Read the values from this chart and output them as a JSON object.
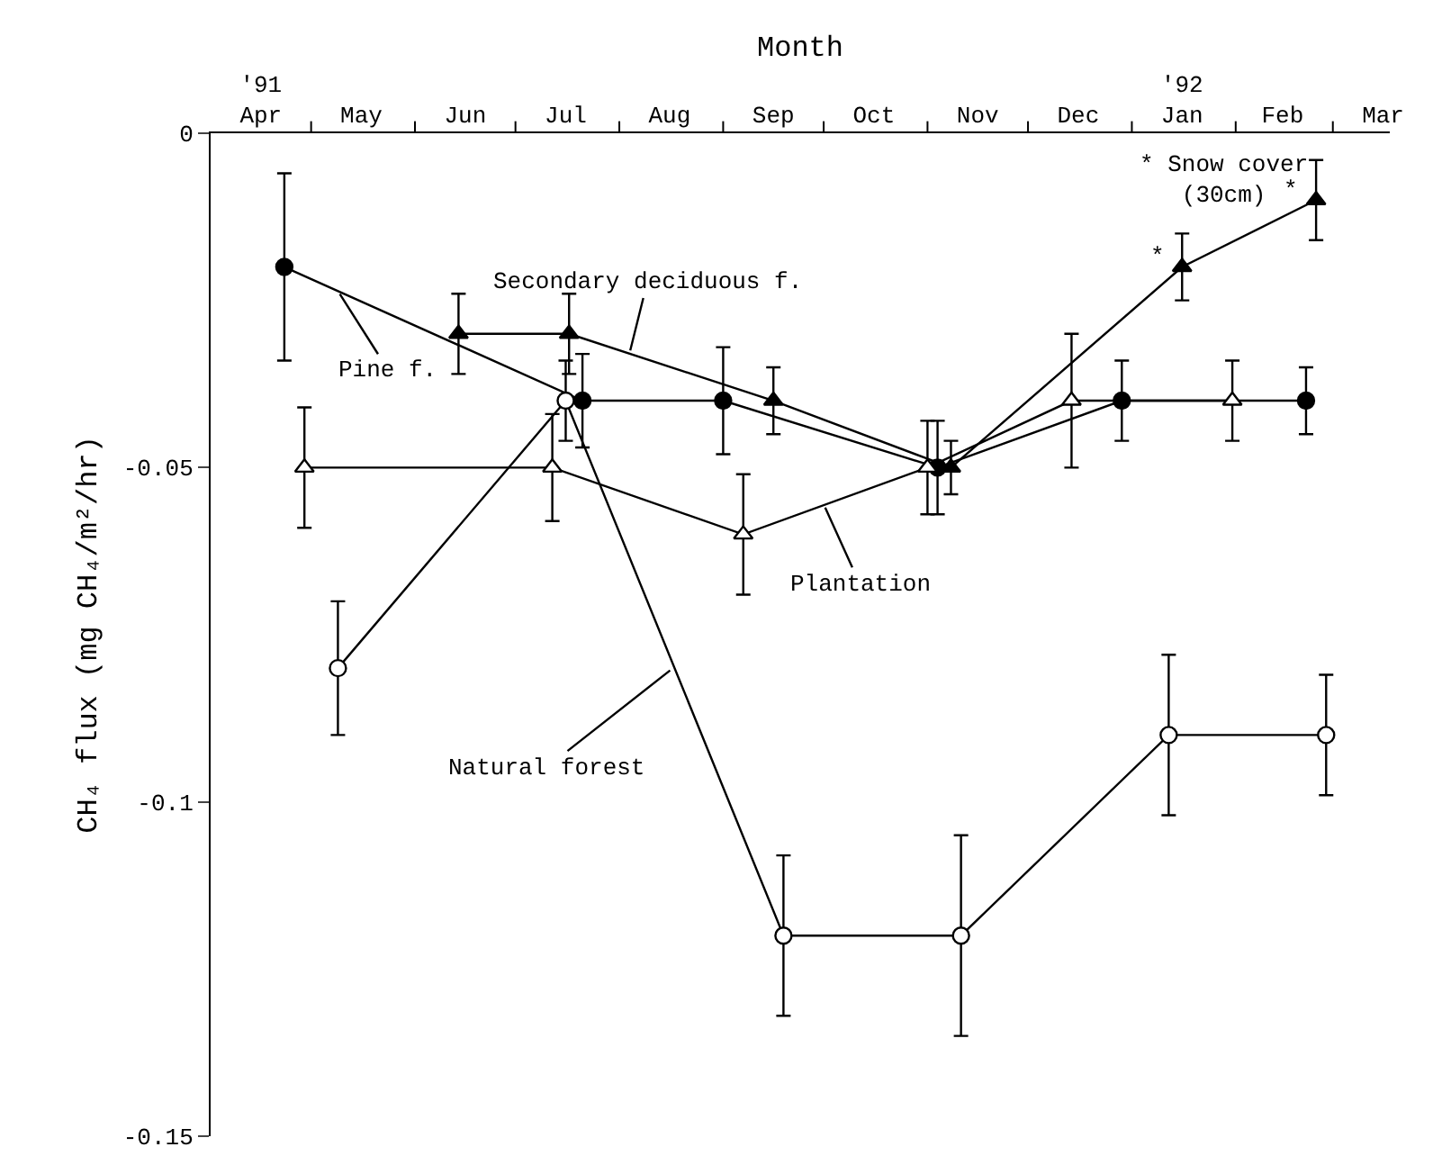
{
  "chart_data": {
    "type": "line",
    "xlabel": "Month",
    "ylabel": "CH₄ flux (mg CH₄/m²/hr)",
    "xlim": [
      "1991-04-01",
      "1992-03-18"
    ],
    "xticks": [
      {
        "value": "1991-04-16",
        "label": "'91\nApr"
      },
      {
        "value": "1991-05-16",
        "label": "May"
      },
      {
        "value": "1991-06-16",
        "label": "Jun"
      },
      {
        "value": "1991-07-16",
        "label": "Jul"
      },
      {
        "value": "1991-08-16",
        "label": "Aug"
      },
      {
        "value": "1991-09-16",
        "label": "Sep"
      },
      {
        "value": "1991-10-16",
        "label": "Oct"
      },
      {
        "value": "1991-11-16",
        "label": "Nov"
      },
      {
        "value": "1991-12-16",
        "label": "Dec"
      },
      {
        "value": "1992-01-16",
        "label": "'92\nJan"
      },
      {
        "value": "1992-02-15",
        "label": "Feb"
      },
      {
        "value": "1992-03-16",
        "label": "Mar"
      },
      {
        "value": "1991-05-01",
        "label": null
      },
      {
        "value": "1991-06-01",
        "label": null
      },
      {
        "value": "1991-07-01",
        "label": null
      },
      {
        "value": "1991-08-01",
        "label": null
      },
      {
        "value": "1991-09-01",
        "label": null
      },
      {
        "value": "1991-10-01",
        "label": null
      },
      {
        "value": "1991-11-01",
        "label": null
      },
      {
        "value": "1991-12-01",
        "label": null
      },
      {
        "value": "1992-01-01",
        "label": null
      },
      {
        "value": "1992-02-01",
        "label": null
      },
      {
        "value": "1992-03-01",
        "label": null
      }
    ],
    "ylim": [
      -0.15,
      0
    ],
    "yticks": [
      0,
      -0.05,
      -0.1,
      -0.15
    ],
    "legend": false,
    "line_style": "solid",
    "series": [
      {
        "name": "Pine f.",
        "color": "#000000",
        "marker": "circle",
        "x": [
          "1991-04-23",
          "1991-07-21",
          "1991-09-01",
          "1991-11-04",
          "1991-12-29",
          "1992-02-22"
        ],
        "values": [
          -0.02,
          -0.04,
          -0.04,
          -0.05,
          -0.04,
          -0.04
        ],
        "errors": [
          0.014,
          0.007,
          0.008,
          0.007,
          0.006,
          0.005
        ]
      },
      {
        "name": "Secondary deciduous f.",
        "color": "#000000",
        "marker": "triangle",
        "x": [
          "1991-06-14",
          "1991-07-17",
          "1991-09-16",
          "1991-11-08",
          "1992-01-16",
          "1992-02-25"
        ],
        "values": [
          -0.03,
          -0.03,
          -0.04,
          -0.05,
          -0.02,
          -0.01
        ],
        "errors": [
          0.006,
          0.006,
          0.005,
          0.004,
          0.005,
          0.006
        ]
      },
      {
        "name": "Plantation",
        "color": "#000000",
        "marker": "triangle",
        "x": [
          "1991-04-29",
          "1991-07-12",
          "1991-09-07",
          "1991-11-01",
          "1991-12-14",
          "1992-01-31"
        ],
        "values": [
          -0.05,
          -0.05,
          -0.06,
          -0.05,
          -0.04,
          -0.04
        ],
        "errors": [
          0.009,
          0.008,
          0.009,
          0.007,
          0.01,
          0.006
        ]
      },
      {
        "name": "Natural forest",
        "color": "#000000",
        "marker": "circle",
        "x": [
          "1991-05-09",
          "1991-07-16",
          "1991-09-19",
          "1991-11-11",
          "1992-01-12",
          "1992-02-28"
        ],
        "values": [
          -0.08,
          -0.04,
          -0.12,
          -0.12,
          -0.09,
          -0.09
        ],
        "errors": [
          0.01,
          0.006,
          0.012,
          0.015,
          0.012,
          0.009
        ]
      }
    ],
    "annotations": [
      "* Snow cover\n(30cm)",
      {
        "text": "*",
        "x": "1992-01-16",
        "y": -0.02
      },
      {
        "text": "*",
        "x": "1992-02-25",
        "y": -0.01
      }
    ]
  }
}
